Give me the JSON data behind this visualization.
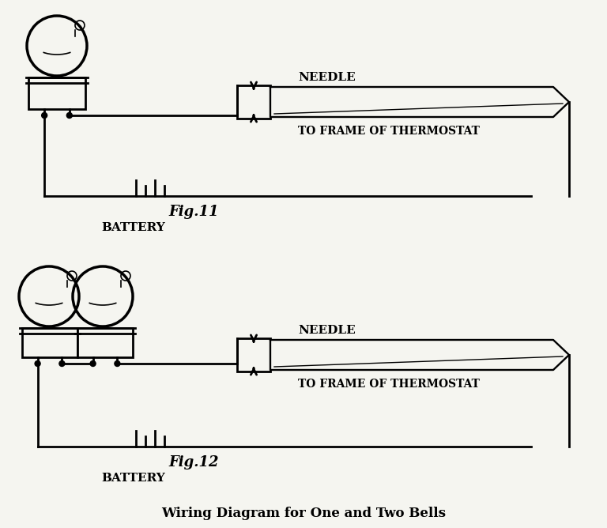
{
  "title": "Wiring Diagram for One and Two Bells",
  "fig11_label": "Fig.11",
  "fig12_label": "Fig.12",
  "battery_label": "BATTERY",
  "needle_label": "NEEDLE",
  "frame_label": "TO FRAME OF THERMOSTAT",
  "bg_color": "#f5f5f0",
  "line_color": "#000000",
  "lw": 2.0,
  "thin_lw": 1.2
}
